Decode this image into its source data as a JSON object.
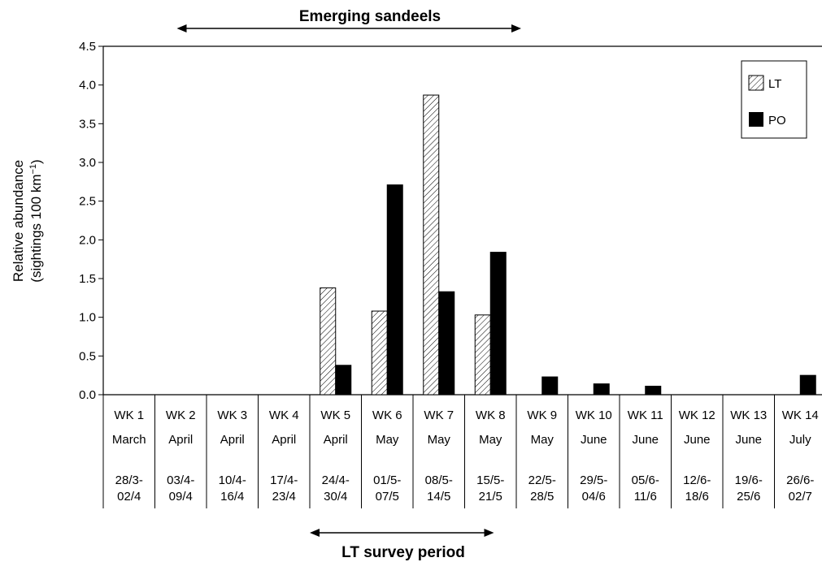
{
  "chart_data": {
    "type": "bar",
    "ylabel_line1": "Relative abundance",
    "ylabel_line2_main": "(sightings  100 km",
    "ylabel_line2_sup": "−1",
    "ylabel_line2_end": ")",
    "ylim": [
      0,
      4.5
    ],
    "yticks": [
      "0.0",
      "0.5",
      "1.0",
      "1.5",
      "2.0",
      "2.5",
      "3.0",
      "3.5",
      "4.0",
      "4.5"
    ],
    "grid": false,
    "legend_position": "top-right",
    "categories": [
      {
        "week": "WK 1",
        "month": "March",
        "dates_top": "28/3-",
        "dates_bottom": "02/4"
      },
      {
        "week": "WK 2",
        "month": "April",
        "dates_top": "03/4-",
        "dates_bottom": "09/4"
      },
      {
        "week": "WK 3",
        "month": "April",
        "dates_top": "10/4-",
        "dates_bottom": "16/4"
      },
      {
        "week": "WK 4",
        "month": "April",
        "dates_top": "17/4-",
        "dates_bottom": "23/4"
      },
      {
        "week": "WK 5",
        "month": "April",
        "dates_top": "24/4-",
        "dates_bottom": "30/4"
      },
      {
        "week": "WK 6",
        "month": "May",
        "dates_top": "01/5-",
        "dates_bottom": "07/5"
      },
      {
        "week": "WK 7",
        "month": "May",
        "dates_top": "08/5-",
        "dates_bottom": "14/5"
      },
      {
        "week": "WK 8",
        "month": "May",
        "dates_top": "15/5-",
        "dates_bottom": "21/5"
      },
      {
        "week": "WK 9",
        "month": "May",
        "dates_top": "22/5-",
        "dates_bottom": "28/5"
      },
      {
        "week": "WK 10",
        "month": "June",
        "dates_top": "29/5-",
        "dates_bottom": "04/6"
      },
      {
        "week": "WK 11",
        "month": "June",
        "dates_top": "05/6-",
        "dates_bottom": "11/6"
      },
      {
        "week": "WK 12",
        "month": "June",
        "dates_top": "12/6-",
        "dates_bottom": "18/6"
      },
      {
        "week": "WK 13",
        "month": "June",
        "dates_top": "19/6-",
        "dates_bottom": "25/6"
      },
      {
        "week": "WK 14",
        "month": "July",
        "dates_top": "26/6-",
        "dates_bottom": "02/7"
      }
    ],
    "series": [
      {
        "name": "LT",
        "pattern": "hatched",
        "values": [
          0,
          0,
          0,
          0,
          1.38,
          1.08,
          3.87,
          1.03,
          0,
          0,
          0,
          0,
          0,
          0
        ]
      },
      {
        "name": "PO",
        "color": "#000000",
        "values": [
          0,
          0,
          0,
          0,
          0.38,
          2.71,
          1.33,
          1.84,
          0.23,
          0.14,
          0.11,
          0,
          0,
          0.25
        ]
      }
    ],
    "annotations": {
      "top_label": "Emerging sandeels",
      "top_span": [
        "WK 2",
        "WK 9"
      ],
      "bottom_label": "LT survey period",
      "bottom_span": [
        "WK 5",
        "WK 8"
      ]
    }
  }
}
